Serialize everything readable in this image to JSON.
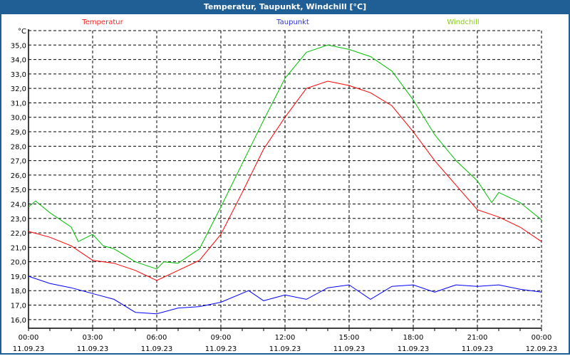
{
  "window": {
    "title": "Temperatur, Taupunkt, Windchill [°C]"
  },
  "chart_data": {
    "type": "line",
    "title": "Temperatur, Taupunkt, Windchill [°C]",
    "ylabel": "°C",
    "ylim": [
      15.4,
      36.0
    ],
    "xlim": [
      0,
      24
    ],
    "yticks": [
      16,
      17,
      18,
      19,
      20,
      21,
      22,
      23,
      24,
      25,
      26,
      27,
      28,
      29,
      30,
      31,
      32,
      33,
      34,
      35
    ],
    "ytick_labels": [
      "16,0",
      "17,0",
      "18,0",
      "19,0",
      "20,0",
      "21,0",
      "22,0",
      "23,0",
      "24,0",
      "25,0",
      "26,0",
      "27,0",
      "28,0",
      "29,0",
      "30,0",
      "31,0",
      "32,0",
      "33,0",
      "34,0",
      "35,0"
    ],
    "xticks": [
      {
        "hour": 0,
        "time": "00:00",
        "date": "11.09.23"
      },
      {
        "hour": 3,
        "time": "03:00",
        "date": "11.09.23"
      },
      {
        "hour": 6,
        "time": "06:00",
        "date": "11.09.23"
      },
      {
        "hour": 9,
        "time": "09:00",
        "date": "11.09.23"
      },
      {
        "hour": 12,
        "time": "12:00",
        "date": "11.09.23"
      },
      {
        "hour": 15,
        "time": "15:00",
        "date": "11.09.23"
      },
      {
        "hour": 18,
        "time": "18:00",
        "date": "11.09.23"
      },
      {
        "hour": 21,
        "time": "21:00",
        "date": "11.09.23"
      },
      {
        "hour": 24,
        "time": "00:00",
        "date": "12.09.23"
      }
    ],
    "grid": true,
    "legend_position": "top",
    "series": [
      {
        "name": "Temperatur",
        "color": "#ff0000",
        "label_color": "#ff2020",
        "x": [
          0,
          1,
          2,
          3,
          4,
          5,
          6,
          7,
          8,
          9,
          10,
          11,
          12,
          13,
          14,
          15,
          16,
          17,
          18,
          19,
          20,
          21,
          22,
          23,
          24
        ],
        "values": [
          22.1,
          21.7,
          21.1,
          20.1,
          19.9,
          19.4,
          18.7,
          19.4,
          20.1,
          21.9,
          24.8,
          27.8,
          30.0,
          32.0,
          32.5,
          32.2,
          31.7,
          30.8,
          29.0,
          27.0,
          25.3,
          23.6,
          23.1,
          22.4,
          21.4
        ]
      },
      {
        "name": "Taupunkt",
        "color": "#0000ff",
        "label_color": "#3030e0",
        "x": [
          0,
          1,
          2,
          3,
          4,
          5,
          6,
          7,
          8,
          9,
          10.3,
          11,
          12,
          13,
          14,
          15,
          16,
          17,
          18,
          19,
          20,
          21,
          22,
          23,
          24
        ],
        "values": [
          19.0,
          18.5,
          18.2,
          17.8,
          17.4,
          16.5,
          16.4,
          16.8,
          16.9,
          17.2,
          18.0,
          17.3,
          17.7,
          17.4,
          18.2,
          18.4,
          17.4,
          18.3,
          18.4,
          17.9,
          18.4,
          18.3,
          18.4,
          18.1,
          17.9
        ]
      },
      {
        "name": "Windchill",
        "color": "#00c000",
        "label_color": "#80d000",
        "x": [
          0,
          0.33,
          1,
          2,
          2.33,
          3,
          3.5,
          4,
          5,
          6,
          6.33,
          7,
          8,
          9,
          10,
          11,
          12,
          13,
          14,
          15,
          16,
          17,
          18,
          19,
          20,
          21,
          21.67,
          22,
          23,
          24
        ],
        "values": [
          23.8,
          24.2,
          23.4,
          22.4,
          21.4,
          21.9,
          21.1,
          20.9,
          20.0,
          19.5,
          20.0,
          19.9,
          20.9,
          23.8,
          26.8,
          29.8,
          32.7,
          34.5,
          35.0,
          34.7,
          34.2,
          33.2,
          31.2,
          28.8,
          27.0,
          25.6,
          24.1,
          24.8,
          24.1,
          22.9
        ]
      }
    ]
  }
}
